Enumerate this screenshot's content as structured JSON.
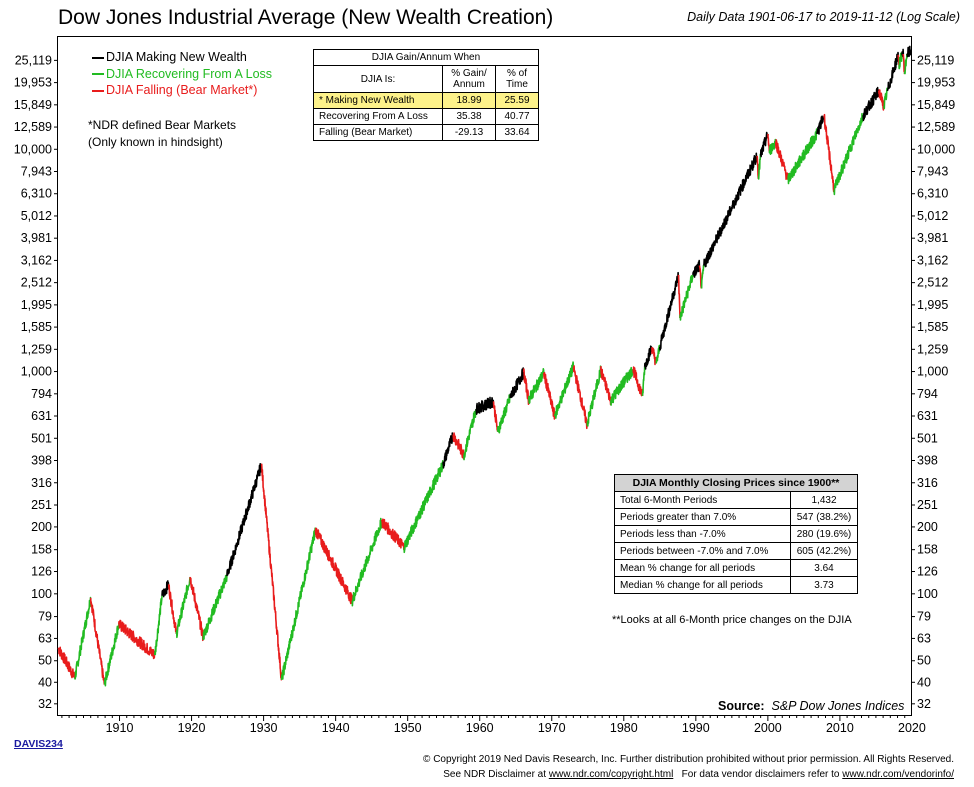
{
  "title": "Dow Jones Industrial Average (New Wealth Creation)",
  "subtitle": "Daily Data 1901-06-17 to 2019-11-12 (Log Scale)",
  "legend": [
    {
      "label": "DJIA Making New Wealth",
      "color": "#000000"
    },
    {
      "label": "DJIA Recovering From A Loss",
      "color": "#22bb22"
    },
    {
      "label": "DJIA Falling (Bear Market*)",
      "color": "#e81c1c"
    }
  ],
  "note": {
    "line1": "*NDR defined Bear Markets",
    "line2": "(Only known in hindsight)"
  },
  "gain_table": {
    "title": "DJIA Gain/Annum When",
    "col0": "DJIA Is:",
    "col1": "% Gain/ Annum",
    "col2": "% of Time",
    "rows": [
      {
        "label": "* Making New Wealth",
        "gain": "18.99",
        "time": "25.59"
      },
      {
        "label": "Recovering From A Loss",
        "gain": "35.38",
        "time": "40.77"
      },
      {
        "label": "Falling (Bear Market)",
        "gain": "-29.13",
        "time": "33.64"
      }
    ]
  },
  "monthly_table": {
    "title": "DJIA Monthly Closing Prices since 1900**",
    "rows": [
      {
        "label": "Total 6-Month Periods",
        "value": "1,432"
      },
      {
        "label": "Periods greater than 7.0%",
        "value": "547 (38.2%)"
      },
      {
        "label": "Periods less than -7.0%",
        "value": "280 (19.6%)"
      },
      {
        "label": "Periods between -7.0% and 7.0%",
        "value": "605 (42.2%)"
      },
      {
        "label": "Mean % change for all periods",
        "value": "3.64"
      },
      {
        "label": "Median % change for all periods",
        "value": "3.73"
      }
    ],
    "footnote": "**Looks at all 6-Month price changes on the DJIA"
  },
  "source": {
    "label": "Source:",
    "value": "S&P Dow Jones Indices"
  },
  "code": "DAVIS234",
  "copyright": {
    "line1": "© Copyright 2019 Ned Davis Research, Inc. Further distribution prohibited without prior permission. All Rights Reserved.",
    "line2a": "See NDR Disclaimer at",
    "link1": "www.ndr.com/copyright.html",
    "line2b": "For data vendor disclaimers refer to",
    "link2": "www.ndr.com/vendorinfo/"
  },
  "chart_data": {
    "type": "line",
    "yscale": "log",
    "xlim": [
      1901.46,
      2019.87
    ],
    "ylim": [
      28.5,
      32000
    ],
    "y_ticks": [
      25119,
      19953,
      15849,
      12589,
      10000,
      7943,
      6310,
      5012,
      3981,
      3162,
      2512,
      1995,
      1585,
      1259,
      1000,
      794,
      631,
      501,
      398,
      316,
      251,
      200,
      158,
      126,
      100,
      79,
      63,
      50,
      40,
      32
    ],
    "y_tick_labels": [
      "25,119",
      "19,953",
      "15,849",
      "12,589",
      "10,000",
      "7,943",
      "6,310",
      "5,012",
      "3,981",
      "3,162",
      "2,512",
      "1,995",
      "1,585",
      "1,259",
      "1,000",
      "794",
      "631",
      "501",
      "398",
      "316",
      "251",
      "200",
      "158",
      "126",
      "100",
      "79",
      "63",
      "50",
      "40",
      "32"
    ],
    "x_ticks": [
      1910,
      1920,
      1930,
      1940,
      1950,
      1960,
      1970,
      1980,
      1990,
      2000,
      2010,
      2020
    ],
    "x_tick_labels": [
      "1910",
      "1920",
      "1930",
      "1940",
      "1950",
      "1960",
      "1970",
      "1980",
      "1990",
      "2000",
      "2010",
      "2020"
    ],
    "segments": [
      {
        "state": "falling",
        "x": [
          1901.5,
          1903.8
        ],
        "y": [
          57,
          42
        ]
      },
      {
        "state": "recovering",
        "x": [
          1903.8,
          1906.0
        ],
        "y": [
          42,
          96
        ]
      },
      {
        "state": "falling",
        "x": [
          1906.0,
          1907.9
        ],
        "y": [
          96,
          39
        ]
      },
      {
        "state": "recovering",
        "x": [
          1907.9,
          1909.9
        ],
        "y": [
          39,
          73
        ]
      },
      {
        "state": "falling",
        "x": [
          1909.9,
          1914.9
        ],
        "y": [
          73,
          53
        ]
      },
      {
        "state": "recovering",
        "x": [
          1914.9,
          1915.9
        ],
        "y": [
          53,
          98
        ]
      },
      {
        "state": "new",
        "x": [
          1915.9,
          1916.8
        ],
        "y": [
          98,
          110
        ]
      },
      {
        "state": "falling",
        "x": [
          1916.8,
          1917.9
        ],
        "y": [
          110,
          66
        ]
      },
      {
        "state": "recovering",
        "x": [
          1917.9,
          1919.8
        ],
        "y": [
          66,
          119
        ]
      },
      {
        "state": "falling",
        "x": [
          1919.8,
          1921.6
        ],
        "y": [
          119,
          64
        ]
      },
      {
        "state": "recovering",
        "x": [
          1921.6,
          1924.9
        ],
        "y": [
          64,
          120
        ]
      },
      {
        "state": "new",
        "x": [
          1924.9,
          1929.7
        ],
        "y": [
          120,
          381
        ]
      },
      {
        "state": "falling",
        "x": [
          1929.7,
          1932.5
        ],
        "y": [
          381,
          41
        ]
      },
      {
        "state": "recovering",
        "x": [
          1932.5,
          1937.2
        ],
        "y": [
          41,
          194
        ]
      },
      {
        "state": "falling",
        "x": [
          1937.2,
          1942.3
        ],
        "y": [
          194,
          93
        ]
      },
      {
        "state": "recovering",
        "x": [
          1942.3,
          1946.4
        ],
        "y": [
          93,
          212
        ]
      },
      {
        "state": "falling",
        "x": [
          1946.4,
          1949.5
        ],
        "y": [
          212,
          162
        ]
      },
      {
        "state": "recovering",
        "x": [
          1949.5,
          1954.9
        ],
        "y": [
          162,
          381
        ]
      },
      {
        "state": "new",
        "x": [
          1954.9,
          1956.3
        ],
        "y": [
          381,
          521
        ]
      },
      {
        "state": "falling",
        "x": [
          1956.3,
          1957.8
        ],
        "y": [
          521,
          420
        ]
      },
      {
        "state": "recovering",
        "x": [
          1957.8,
          1959.5
        ],
        "y": [
          420,
          679
        ]
      },
      {
        "state": "new",
        "x": [
          1959.5,
          1961.9
        ],
        "y": [
          679,
          734
        ]
      },
      {
        "state": "falling",
        "x": [
          1961.9,
          1962.5
        ],
        "y": [
          734,
          536
        ]
      },
      {
        "state": "recovering",
        "x": [
          1962.5,
          1964.2
        ],
        "y": [
          536,
          760
        ]
      },
      {
        "state": "new",
        "x": [
          1964.2,
          1966.1
        ],
        "y": [
          760,
          995
        ]
      },
      {
        "state": "falling",
        "x": [
          1966.1,
          1966.8
        ],
        "y": [
          995,
          744
        ]
      },
      {
        "state": "recovering",
        "x": [
          1966.8,
          1968.9
        ],
        "y": [
          744,
          985
        ]
      },
      {
        "state": "falling",
        "x": [
          1968.9,
          1970.4
        ],
        "y": [
          985,
          631
        ]
      },
      {
        "state": "recovering",
        "x": [
          1970.4,
          1973.0
        ],
        "y": [
          631,
          1051
        ]
      },
      {
        "state": "falling",
        "x": [
          1973.0,
          1974.9
        ],
        "y": [
          1051,
          578
        ]
      },
      {
        "state": "recovering",
        "x": [
          1974.9,
          1976.8
        ],
        "y": [
          578,
          1014
        ]
      },
      {
        "state": "falling",
        "x": [
          1976.8,
          1978.2
        ],
        "y": [
          1014,
          742
        ]
      },
      {
        "state": "recovering",
        "x": [
          1978.2,
          1981.3
        ],
        "y": [
          742,
          1024
        ]
      },
      {
        "state": "falling",
        "x": [
          1981.3,
          1982.6
        ],
        "y": [
          1024,
          777
        ]
      },
      {
        "state": "recovering",
        "x": [
          1982.6,
          1982.9
        ],
        "y": [
          777,
          1051
        ]
      },
      {
        "state": "new",
        "x": [
          1982.9,
          1983.9
        ],
        "y": [
          1051,
          1287
        ]
      },
      {
        "state": "falling",
        "x": [
          1983.9,
          1984.5
        ],
        "y": [
          1287,
          1087
        ]
      },
      {
        "state": "recovering",
        "x": [
          1984.5,
          1985.0
        ],
        "y": [
          1087,
          1290
        ]
      },
      {
        "state": "new",
        "x": [
          1985.0,
          1987.6
        ],
        "y": [
          1290,
          2722
        ]
      },
      {
        "state": "falling",
        "x": [
          1987.6,
          1987.8
        ],
        "y": [
          2722,
          1739
        ]
      },
      {
        "state": "recovering",
        "x": [
          1987.8,
          1989.6
        ],
        "y": [
          1739,
          2722
        ]
      },
      {
        "state": "new",
        "x": [
          1989.6,
          1990.5
        ],
        "y": [
          2722,
          2999
        ]
      },
      {
        "state": "falling",
        "x": [
          1990.5,
          1990.8
        ],
        "y": [
          2999,
          2365
        ]
      },
      {
        "state": "recovering",
        "x": [
          1990.8,
          1991.1
        ],
        "y": [
          2365,
          2999
        ]
      },
      {
        "state": "new",
        "x": [
          1991.1,
          1998.5
        ],
        "y": [
          2999,
          9337
        ]
      },
      {
        "state": "falling",
        "x": [
          1998.5,
          1998.7
        ],
        "y": [
          9337,
          7539
        ]
      },
      {
        "state": "recovering",
        "x": [
          1998.7,
          1999.0
        ],
        "y": [
          7539,
          9374
        ]
      },
      {
        "state": "new",
        "x": [
          1999.0,
          2000.0
        ],
        "y": [
          9374,
          11722
        ]
      },
      {
        "state": "falling",
        "x": [
          2000.0,
          2000.2
        ],
        "y": [
          11722,
          9796
        ]
      },
      {
        "state": "recovering",
        "x": [
          2000.2,
          2001.1
        ],
        "y": [
          9796,
          10800
        ]
      },
      {
        "state": "falling",
        "x": [
          2001.1,
          2002.8
        ],
        "y": [
          10800,
          7286
        ]
      },
      {
        "state": "recovering",
        "x": [
          2002.8,
          2006.8
        ],
        "y": [
          7286,
          11722
        ]
      },
      {
        "state": "new",
        "x": [
          2006.8,
          2007.8
        ],
        "y": [
          11722,
          14165
        ]
      },
      {
        "state": "falling",
        "x": [
          2007.8,
          2009.2
        ],
        "y": [
          14165,
          6547
        ]
      },
      {
        "state": "recovering",
        "x": [
          2009.2,
          2013.2
        ],
        "y": [
          6547,
          14165
        ]
      },
      {
        "state": "new",
        "x": [
          2013.2,
          2015.4
        ],
        "y": [
          14165,
          18312
        ]
      },
      {
        "state": "falling",
        "x": [
          2015.4,
          2016.1
        ],
        "y": [
          18312,
          15660
        ]
      },
      {
        "state": "recovering",
        "x": [
          2016.1,
          2016.6
        ],
        "y": [
          15660,
          18312
        ]
      },
      {
        "state": "new",
        "x": [
          2016.6,
          2018.1
        ],
        "y": [
          18312,
          26617
        ]
      },
      {
        "state": "falling",
        "x": [
          2018.1,
          2018.2
        ],
        "y": [
          26617,
          23860
        ]
      },
      {
        "state": "recovering",
        "x": [
          2018.2,
          2018.6
        ],
        "y": [
          23860,
          26617
        ]
      },
      {
        "state": "new",
        "x": [
          2018.6,
          2018.8
        ],
        "y": [
          26617,
          26828
        ]
      },
      {
        "state": "falling",
        "x": [
          2018.8,
          2018.98
        ],
        "y": [
          26828,
          21792
        ]
      },
      {
        "state": "recovering",
        "x": [
          2018.98,
          2019.3
        ],
        "y": [
          21792,
          26828
        ]
      },
      {
        "state": "new",
        "x": [
          2019.3,
          2019.87
        ],
        "y": [
          26828,
          27691
        ]
      }
    ]
  }
}
